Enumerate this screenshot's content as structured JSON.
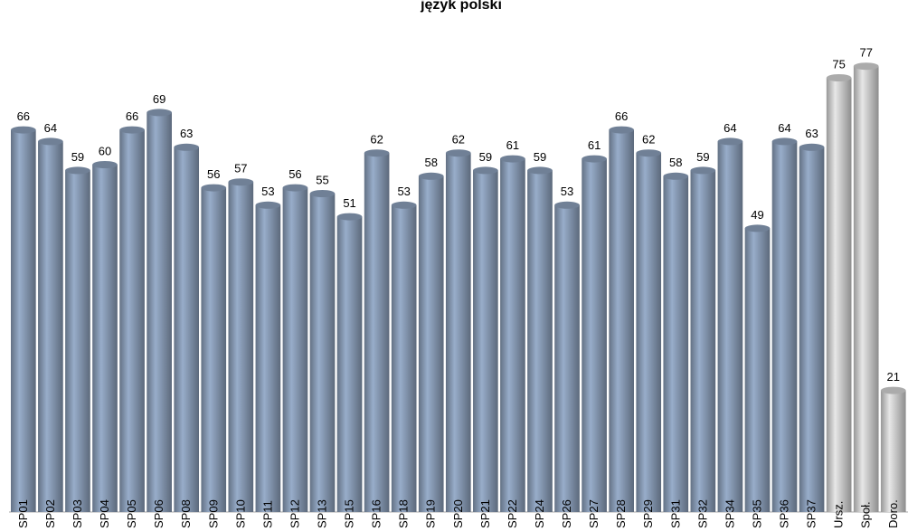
{
  "chart_data": {
    "type": "bar",
    "title": "język polski",
    "categories": [
      "SP01",
      "SP02",
      "SP03",
      "SP04",
      "SP05",
      "SP06",
      "SP08",
      "SP09",
      "SP10",
      "SP11",
      "SP12",
      "SP13",
      "SP15",
      "SP16",
      "SP18",
      "SP19",
      "SP20",
      "SP21",
      "SP22",
      "SP24",
      "SP26",
      "SP27",
      "SP28",
      "SP29",
      "SP31",
      "SP32",
      "SP34",
      "SP35",
      "SP36",
      "SP37",
      "Ursz.",
      "Społ.",
      "Doro."
    ],
    "values": [
      66,
      64,
      59,
      60,
      66,
      69,
      63,
      56,
      57,
      53,
      56,
      55,
      51,
      62,
      53,
      58,
      62,
      59,
      61,
      59,
      53,
      61,
      66,
      62,
      58,
      59,
      64,
      49,
      64,
      63,
      75,
      77,
      21
    ],
    "colors": [
      "#8496b0",
      "#8496b0",
      "#8496b0",
      "#8496b0",
      "#8496b0",
      "#8496b0",
      "#8496b0",
      "#8496b0",
      "#8496b0",
      "#8496b0",
      "#8496b0",
      "#8496b0",
      "#8496b0",
      "#8496b0",
      "#8496b0",
      "#8496b0",
      "#8496b0",
      "#8496b0",
      "#8496b0",
      "#8496b0",
      "#8496b0",
      "#8496b0",
      "#8496b0",
      "#8496b0",
      "#8496b0",
      "#8496b0",
      "#8496b0",
      "#8496b0",
      "#8496b0",
      "#8496b0",
      "#c9c9c9",
      "#c9c9c9",
      "#c9c9c9"
    ]
  }
}
